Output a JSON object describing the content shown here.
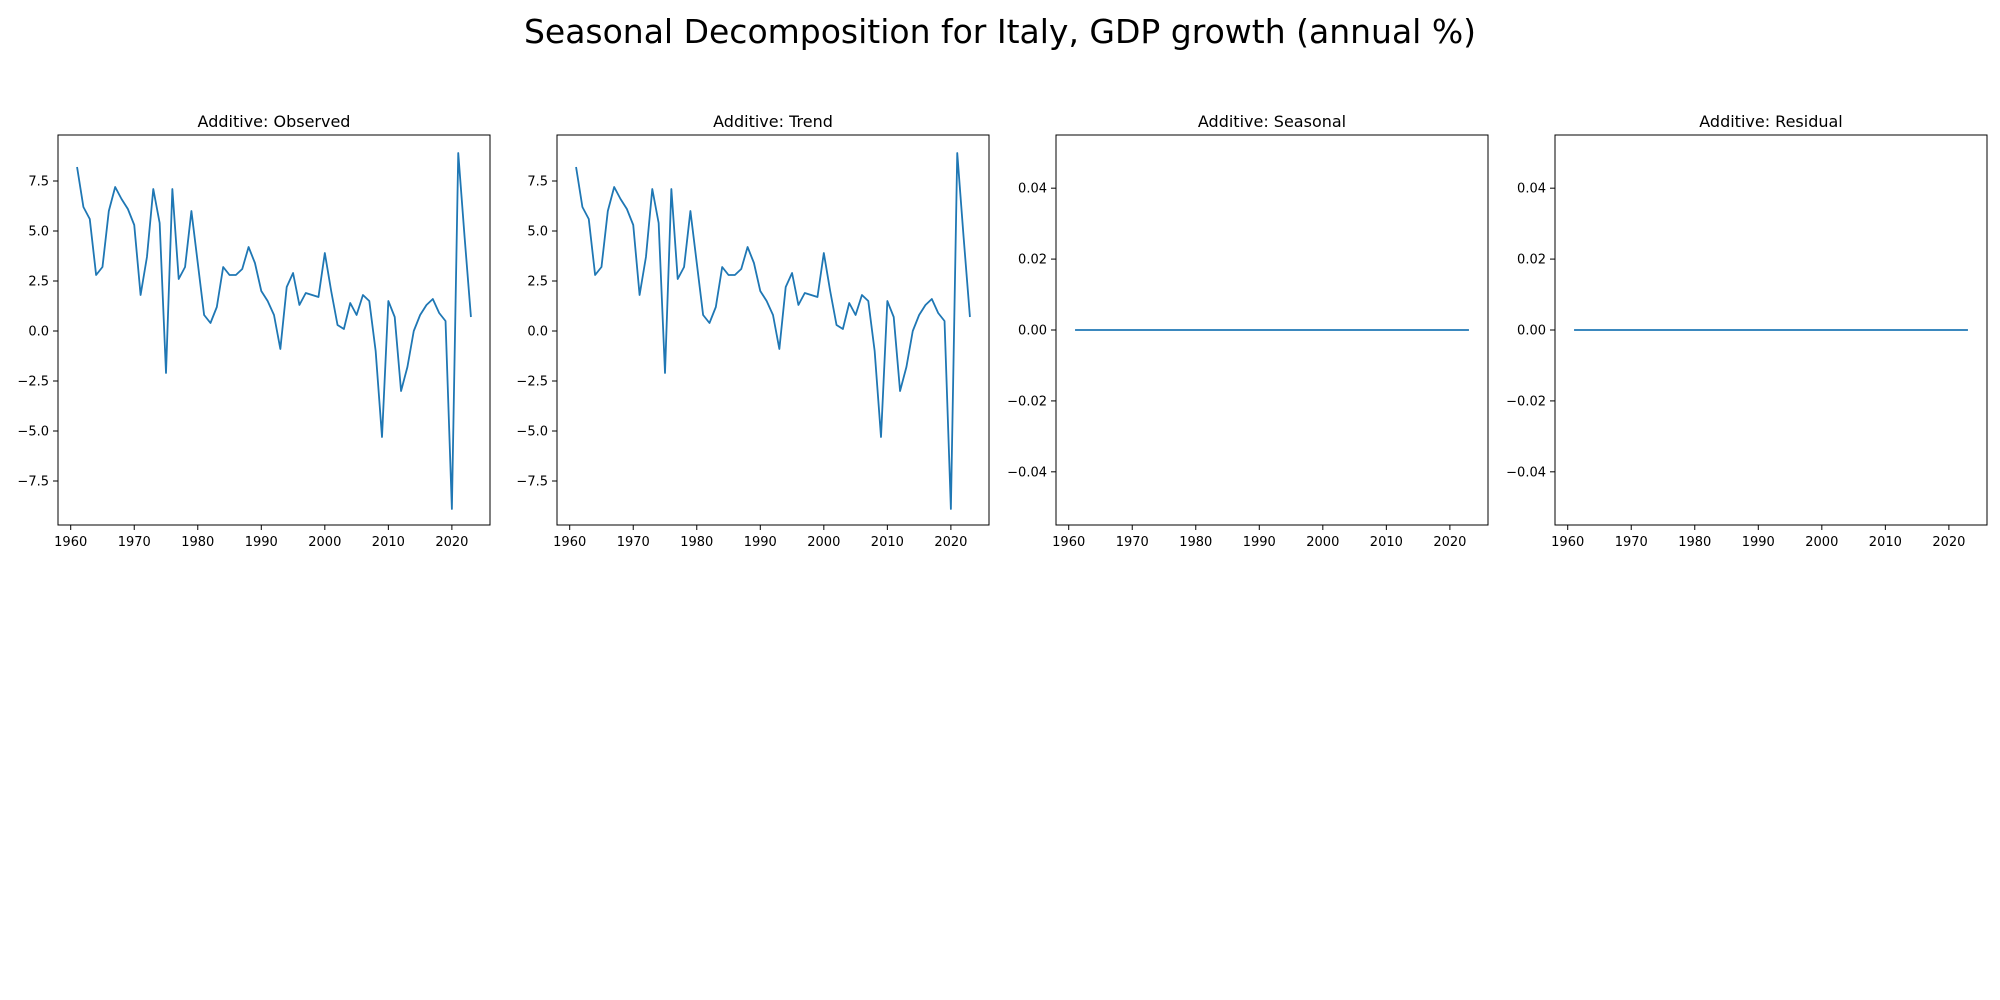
{
  "figure": {
    "title": "Seasonal Decomposition for Italy, GDP growth (annual %)"
  },
  "colors": {
    "line": "#1f77b4",
    "axes": "#000000"
  },
  "chart_data": [
    {
      "type": "line",
      "title": "Additive: Observed",
      "xlabel": "",
      "ylabel": "",
      "xlim": [
        1958,
        2026
      ],
      "ylim": [
        -9.7,
        9.8
      ],
      "xticks": [
        1960,
        1970,
        1980,
        1990,
        2000,
        2010,
        2020
      ],
      "xtick_labels": [
        "1960",
        "1970",
        "1980",
        "1990",
        "2000",
        "2010",
        "2020"
      ],
      "yticks": [
        -7.5,
        -5.0,
        -2.5,
        0.0,
        2.5,
        5.0,
        7.5
      ],
      "ytick_labels": [
        "−7.5",
        "−5.0",
        "−2.5",
        "0.0",
        "2.5",
        "5.0",
        "7.5"
      ],
      "grid": false,
      "x": [
        1961,
        1962,
        1963,
        1964,
        1965,
        1966,
        1967,
        1968,
        1969,
        1970,
        1971,
        1972,
        1973,
        1974,
        1975,
        1976,
        1977,
        1978,
        1979,
        1980,
        1981,
        1982,
        1983,
        1984,
        1985,
        1986,
        1987,
        1988,
        1989,
        1990,
        1991,
        1992,
        1993,
        1994,
        1995,
        1996,
        1997,
        1998,
        1999,
        2000,
        2001,
        2002,
        2003,
        2004,
        2005,
        2006,
        2007,
        2008,
        2009,
        2010,
        2011,
        2012,
        2013,
        2014,
        2015,
        2016,
        2017,
        2018,
        2019,
        2020,
        2021,
        2022,
        2023
      ],
      "y": [
        8.2,
        6.2,
        5.6,
        2.8,
        3.2,
        6.0,
        7.2,
        6.6,
        6.1,
        5.3,
        1.8,
        3.7,
        7.1,
        5.4,
        -2.1,
        7.1,
        2.6,
        3.2,
        6.0,
        3.4,
        0.8,
        0.4,
        1.2,
        3.2,
        2.8,
        2.8,
        3.1,
        4.2,
        3.4,
        2.0,
        1.5,
        0.8,
        -0.9,
        2.2,
        2.9,
        1.3,
        1.9,
        1.8,
        1.7,
        3.9,
        2.0,
        0.3,
        0.1,
        1.4,
        0.8,
        1.8,
        1.5,
        -1.0,
        -5.3,
        1.5,
        0.7,
        -3.0,
        -1.8,
        0.0,
        0.8,
        1.3,
        1.6,
        0.9,
        0.5,
        -8.9,
        8.9,
        4.7,
        0.7
      ]
    },
    {
      "type": "line",
      "title": "Additive: Trend",
      "xlabel": "",
      "ylabel": "",
      "xlim": [
        1958,
        2026
      ],
      "ylim": [
        -9.7,
        9.8
      ],
      "xticks": [
        1960,
        1970,
        1980,
        1990,
        2000,
        2010,
        2020
      ],
      "xtick_labels": [
        "1960",
        "1970",
        "1980",
        "1990",
        "2000",
        "2010",
        "2020"
      ],
      "yticks": [
        -7.5,
        -5.0,
        -2.5,
        0.0,
        2.5,
        5.0,
        7.5
      ],
      "ytick_labels": [
        "−7.5",
        "−5.0",
        "−2.5",
        "0.0",
        "2.5",
        "5.0",
        "7.5"
      ],
      "grid": false,
      "x": [
        1961,
        1962,
        1963,
        1964,
        1965,
        1966,
        1967,
        1968,
        1969,
        1970,
        1971,
        1972,
        1973,
        1974,
        1975,
        1976,
        1977,
        1978,
        1979,
        1980,
        1981,
        1982,
        1983,
        1984,
        1985,
        1986,
        1987,
        1988,
        1989,
        1990,
        1991,
        1992,
        1993,
        1994,
        1995,
        1996,
        1997,
        1998,
        1999,
        2000,
        2001,
        2002,
        2003,
        2004,
        2005,
        2006,
        2007,
        2008,
        2009,
        2010,
        2011,
        2012,
        2013,
        2014,
        2015,
        2016,
        2017,
        2018,
        2019,
        2020,
        2021,
        2022,
        2023
      ],
      "y": [
        8.2,
        6.2,
        5.6,
        2.8,
        3.2,
        6.0,
        7.2,
        6.6,
        6.1,
        5.3,
        1.8,
        3.7,
        7.1,
        5.4,
        -2.1,
        7.1,
        2.6,
        3.2,
        6.0,
        3.4,
        0.8,
        0.4,
        1.2,
        3.2,
        2.8,
        2.8,
        3.1,
        4.2,
        3.4,
        2.0,
        1.5,
        0.8,
        -0.9,
        2.2,
        2.9,
        1.3,
        1.9,
        1.8,
        1.7,
        3.9,
        2.0,
        0.3,
        0.1,
        1.4,
        0.8,
        1.8,
        1.5,
        -1.0,
        -5.3,
        1.5,
        0.7,
        -3.0,
        -1.8,
        0.0,
        0.8,
        1.3,
        1.6,
        0.9,
        0.5,
        -8.9,
        8.9,
        4.7,
        0.7
      ]
    },
    {
      "type": "line",
      "title": "Additive: Seasonal",
      "xlabel": "",
      "ylabel": "",
      "xlim": [
        1958,
        2026
      ],
      "ylim": [
        -0.055,
        0.055
      ],
      "xticks": [
        1960,
        1970,
        1980,
        1990,
        2000,
        2010,
        2020
      ],
      "xtick_labels": [
        "1960",
        "1970",
        "1980",
        "1990",
        "2000",
        "2010",
        "2020"
      ],
      "yticks": [
        -0.04,
        -0.02,
        0.0,
        0.02,
        0.04
      ],
      "ytick_labels": [
        "−0.04",
        "−0.02",
        "0.00",
        "0.02",
        "0.04"
      ],
      "grid": false,
      "x": [
        1961,
        2023
      ],
      "y": [
        0.0,
        0.0
      ]
    },
    {
      "type": "line",
      "title": "Additive: Residual",
      "xlabel": "",
      "ylabel": "",
      "xlim": [
        1958,
        2026
      ],
      "ylim": [
        -0.055,
        0.055
      ],
      "xticks": [
        1960,
        1970,
        1980,
        1990,
        2000,
        2010,
        2020
      ],
      "xtick_labels": [
        "1960",
        "1970",
        "1980",
        "1990",
        "2000",
        "2010",
        "2020"
      ],
      "yticks": [
        -0.04,
        -0.02,
        0.0,
        0.02,
        0.04
      ],
      "ytick_labels": [
        "−0.04",
        "−0.02",
        "0.00",
        "0.02",
        "0.04"
      ],
      "grid": false,
      "x": [
        1961,
        2023
      ],
      "y": [
        0.0,
        0.0
      ]
    }
  ]
}
